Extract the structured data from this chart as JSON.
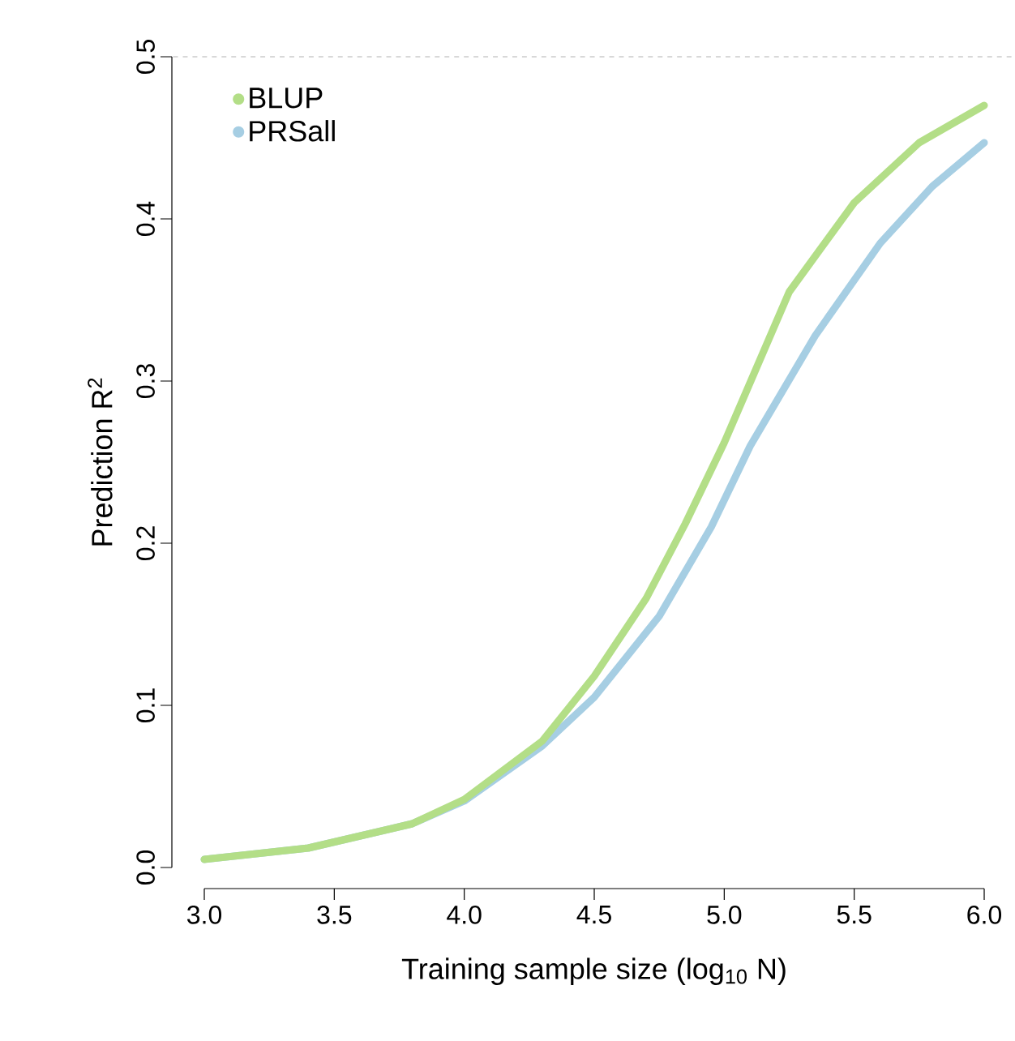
{
  "chart_data": {
    "type": "line",
    "xlabel": "Training sample size (log$_{10}$ N)",
    "ylabel": "Prediction R$^{2}$",
    "xlim": [
      3,
      6
    ],
    "ylim": [
      0,
      0.5
    ],
    "xticks": [
      {
        "value": 3,
        "label": "3.0"
      },
      {
        "value": 3.5,
        "label": "3.5"
      },
      {
        "value": 4,
        "label": "4.0"
      },
      {
        "value": 4.5,
        "label": "4.5"
      },
      {
        "value": 5,
        "label": "5.0"
      },
      {
        "value": 5.5,
        "label": "5.5"
      },
      {
        "value": 6,
        "label": "6.0"
      }
    ],
    "yticks": [
      {
        "value": 0,
        "label": "0.0"
      },
      0.1,
      0.2,
      0.3,
      0.4,
      0.5
    ],
    "legend": "top left",
    "grid": false,
    "line_style": "solid",
    "ref_lines": [
      {
        "axis": "y",
        "value": 0.5,
        "color": "#cccccc",
        "line_style": "dashed"
      }
    ],
    "series": [
      {
        "name": "BLUP",
        "color": "#b3de87",
        "x": [
          3.0,
          3.4,
          3.8,
          4.0,
          4.3,
          4.5,
          4.7,
          4.85,
          5.0,
          5.25,
          5.5,
          5.75,
          6.0
        ],
        "values": [
          0.005,
          0.012,
          0.027,
          0.042,
          0.078,
          0.118,
          0.166,
          0.212,
          0.262,
          0.355,
          0.41,
          0.447,
          0.47
        ]
      },
      {
        "name": "PRSall",
        "color": "#a6cee3",
        "x": [
          3.0,
          3.4,
          3.8,
          4.0,
          4.3,
          4.5,
          4.75,
          4.95,
          5.1,
          5.35,
          5.6,
          5.8,
          6.0
        ],
        "values": [
          0.005,
          0.012,
          0.027,
          0.041,
          0.075,
          0.105,
          0.155,
          0.21,
          0.26,
          0.328,
          0.385,
          0.42,
          0.447
        ]
      }
    ]
  }
}
